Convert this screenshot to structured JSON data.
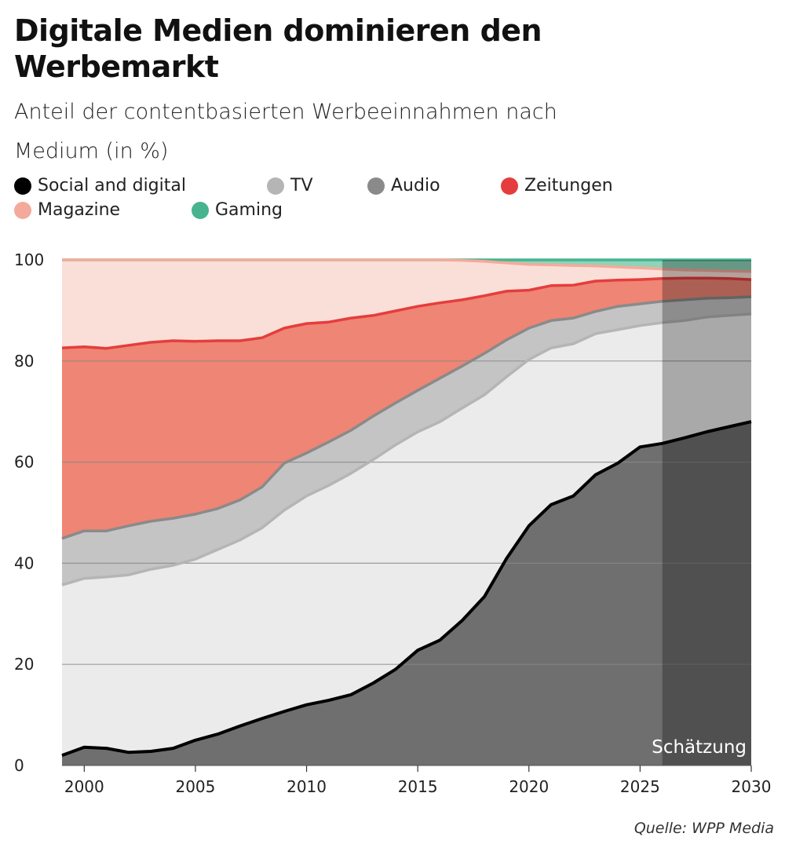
{
  "header": {
    "title": "Digitale Medien dominieren den Werbemarkt",
    "subtitle": "Anteil der contentbasierten Werbeeinnahmen nach Medium (in %)"
  },
  "source": "Quelle: WPP Media",
  "chart_data": {
    "type": "area",
    "stacked": true,
    "title": "Digitale Medien dominieren den Werbemarkt",
    "subtitle": "Anteil der contentbasierten Werbeeinnahmen nach Medium (in %)",
    "xlabel": "",
    "ylabel": "",
    "xlim": [
      1999,
      2030
    ],
    "ylim": [
      0,
      100
    ],
    "x_ticks": [
      2000,
      2005,
      2010,
      2015,
      2020,
      2025,
      2030
    ],
    "y_ticks": [
      0,
      20,
      40,
      60,
      80,
      100
    ],
    "grid": "horizontal",
    "legend_position": "top",
    "annotation": {
      "label": "Schätzung",
      "from": 2026,
      "to": 2030
    },
    "x": [
      1999,
      2000,
      2001,
      2002,
      2003,
      2004,
      2005,
      2006,
      2007,
      2008,
      2009,
      2010,
      2011,
      2012,
      2013,
      2014,
      2015,
      2016,
      2017,
      2018,
      2019,
      2020,
      2021,
      2022,
      2023,
      2024,
      2025,
      2026,
      2027,
      2028,
      2029,
      2030
    ],
    "series": [
      {
        "name": "Social and digital",
        "color": "#000000",
        "fill": "#6f6f6f",
        "values": [
          2,
          3.6,
          3.4,
          2.6,
          2.8,
          3.4,
          5,
          6.2,
          7.8,
          9.3,
          10.7,
          12,
          12.9,
          14,
          16.3,
          19,
          22.8,
          24.8,
          28.7,
          33.4,
          41,
          47.4,
          51.6,
          53.3,
          57.5,
          59.8,
          63,
          63.7,
          64.8,
          66,
          67,
          68
        ]
      },
      {
        "name": "TV",
        "color": "#b5b5b5",
        "fill": "#ebebeb",
        "values": [
          33.7,
          33.4,
          33.9,
          35.1,
          36,
          36.2,
          35.8,
          36.5,
          36.8,
          37.7,
          39.8,
          41.3,
          42.5,
          43.8,
          44.2,
          44.4,
          43.2,
          43.2,
          42,
          39.9,
          35.9,
          32.9,
          31,
          30.1,
          27.9,
          26.4,
          24,
          23.9,
          23.2,
          22.7,
          22,
          21.3
        ]
      },
      {
        "name": "Audio",
        "color": "#8a8a8a",
        "fill": "#c4c4c4",
        "values": [
          9.2,
          9.4,
          9.1,
          9.7,
          9.5,
          9.3,
          8.9,
          8.1,
          7.9,
          8.1,
          9.3,
          8.5,
          8.6,
          8.5,
          8.6,
          8.3,
          8.2,
          8.6,
          8.3,
          8.2,
          7.3,
          6.2,
          5.4,
          5.1,
          4.4,
          4.6,
          4.3,
          4.2,
          4.1,
          3.7,
          3.5,
          3.4
        ]
      },
      {
        "name": "Zeitungen",
        "color": "#e53d3d",
        "fill": "#ef8574",
        "values": [
          37.7,
          36.4,
          36.1,
          35.7,
          35.4,
          35.1,
          34.2,
          33.2,
          31.5,
          29.5,
          26.7,
          25.6,
          23.7,
          22.2,
          19.9,
          18.2,
          16.6,
          14.9,
          13.1,
          11.4,
          9.6,
          7.5,
          6.9,
          6.5,
          6,
          5.2,
          4.8,
          4.5,
          4.3,
          4,
          3.8,
          3.4
        ]
      },
      {
        "name": "Magazine",
        "color": "#f4aa9b",
        "fill": "#fadfd8",
        "values": [
          17.4,
          17.2,
          17.5,
          16.9,
          16.3,
          16,
          16.1,
          16,
          16,
          15.4,
          13.5,
          12.6,
          12.3,
          11.5,
          11,
          10.1,
          9.2,
          8.5,
          7.8,
          6.8,
          5.6,
          5.1,
          4.1,
          3.9,
          3,
          2.6,
          2.3,
          1.9,
          1.6,
          1.5,
          1.5,
          1.6
        ]
      },
      {
        "name": "Gaming",
        "color": "#47b48f",
        "fill": "#8fd3b9",
        "values": [
          0,
          0,
          0,
          0,
          0,
          0,
          0,
          0,
          0,
          0,
          0,
          0,
          0,
          0,
          0,
          0,
          0,
          0,
          0.1,
          0.3,
          0.6,
          0.9,
          1,
          1.1,
          1.2,
          1.4,
          1.6,
          1.8,
          2,
          2.1,
          2.2,
          2.3
        ]
      }
    ]
  }
}
